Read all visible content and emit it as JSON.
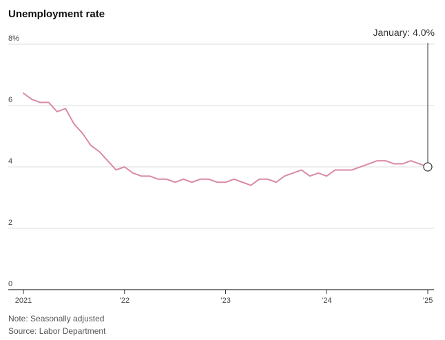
{
  "chart_data": {
    "type": "line",
    "title": "Unemployment rate",
    "ylim": [
      0,
      8
    ],
    "yticks": [
      0,
      2,
      4,
      6,
      8
    ],
    "ytick_labels": [
      "0",
      "2",
      "4",
      "6",
      "8%"
    ],
    "xticks": [
      2021,
      2022,
      2023,
      2024,
      2025
    ],
    "xtick_labels": [
      "2021",
      "’22",
      "’23",
      "’24",
      "’25"
    ],
    "x_start_year": 2021,
    "x_start_month": 1,
    "series": [
      {
        "color": "#d98aa9",
        "values": [
          6.4,
          6.2,
          6.1,
          6.1,
          5.8,
          5.9,
          5.4,
          5.1,
          4.7,
          4.5,
          4.2,
          3.9,
          4.0,
          3.8,
          3.7,
          3.7,
          3.6,
          3.6,
          3.5,
          3.6,
          3.5,
          3.6,
          3.6,
          3.5,
          3.5,
          3.6,
          3.5,
          3.4,
          3.6,
          3.6,
          3.5,
          3.7,
          3.8,
          3.9,
          3.7,
          3.8,
          3.7,
          3.9,
          3.9,
          3.9,
          4.0,
          4.1,
          4.2,
          4.2,
          4.1,
          4.1,
          4.2,
          4.1,
          4.0
        ]
      }
    ],
    "annotation": {
      "text": "January: 4.0%"
    },
    "grid": true
  },
  "notes": {
    "line1": "Note: Seasonally adjusted",
    "line2": "Source: Labor Department"
  }
}
